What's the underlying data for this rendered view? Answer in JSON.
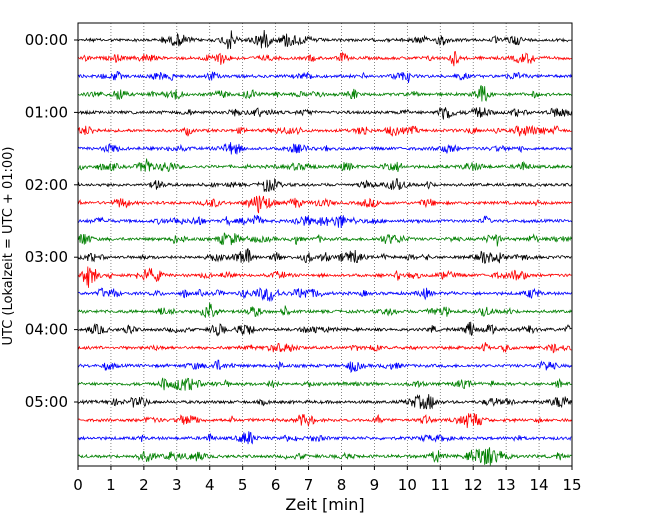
{
  "chart_data": {
    "type": "line",
    "title": "",
    "xlabel": "Zeit  [min]",
    "ylabel": "UTC (Lokalzeit = UTC + 01:00)",
    "xlim": [
      0,
      15
    ],
    "x_ticks": [
      "0",
      "1",
      "2",
      "3",
      "4",
      "5",
      "6",
      "7",
      "8",
      "9",
      "10",
      "11",
      "12",
      "13",
      "14",
      "15"
    ],
    "y_tick_labels": [
      "00:00",
      "01:00",
      "02:00",
      "03:00",
      "04:00",
      "05:00"
    ],
    "grid": "vertical dotted",
    "trace_count": 24,
    "trace_interval_minutes": 15,
    "colors_cycle": [
      "#000000",
      "#ff0000",
      "#0000ff",
      "#008000"
    ],
    "series": [
      {
        "start": "00:00",
        "color": "#000000"
      },
      {
        "start": "00:15",
        "color": "#ff0000"
      },
      {
        "start": "00:30",
        "color": "#0000ff"
      },
      {
        "start": "00:45",
        "color": "#008000"
      },
      {
        "start": "01:00",
        "color": "#000000"
      },
      {
        "start": "01:15",
        "color": "#ff0000"
      },
      {
        "start": "01:30",
        "color": "#0000ff"
      },
      {
        "start": "01:45",
        "color": "#008000"
      },
      {
        "start": "02:00",
        "color": "#000000"
      },
      {
        "start": "02:15",
        "color": "#ff0000"
      },
      {
        "start": "02:30",
        "color": "#0000ff"
      },
      {
        "start": "02:45",
        "color": "#008000"
      },
      {
        "start": "03:00",
        "color": "#000000"
      },
      {
        "start": "03:15",
        "color": "#ff0000"
      },
      {
        "start": "03:30",
        "color": "#0000ff"
      },
      {
        "start": "03:45",
        "color": "#008000"
      },
      {
        "start": "04:00",
        "color": "#000000"
      },
      {
        "start": "04:15",
        "color": "#ff0000"
      },
      {
        "start": "04:30",
        "color": "#0000ff"
      },
      {
        "start": "04:45",
        "color": "#008000"
      },
      {
        "start": "05:00",
        "color": "#000000"
      },
      {
        "start": "05:15",
        "color": "#ff0000"
      },
      {
        "start": "05:30",
        "color": "#0000ff"
      },
      {
        "start": "05:45",
        "color": "#008000"
      }
    ]
  }
}
